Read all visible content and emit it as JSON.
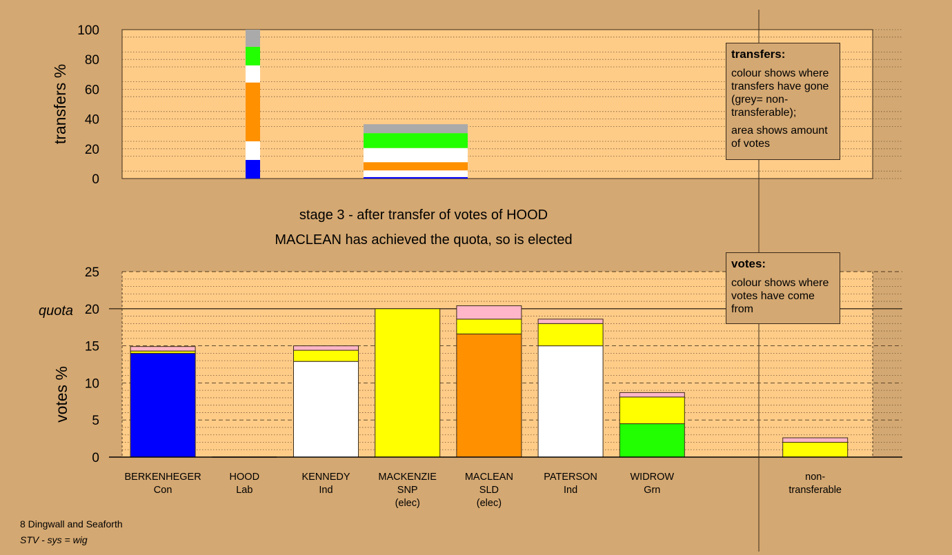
{
  "stage_title": "stage 3 - after transfer of votes of HOOD",
  "stage_subtitle": "MACLEAN has achieved the quota, so is elected",
  "transfers_legend": {
    "title": "transfers:",
    "p1": "colour shows where transfers have gone (grey= non-transferable);",
    "p2": "area shows amount of votes"
  },
  "votes_legend": {
    "title": "votes:",
    "p1": "colour shows where votes have come from"
  },
  "footer": {
    "line1": "8 Dingwall and Seaforth",
    "line2": "STV - sys = wig"
  },
  "colors": {
    "background": "#d4a872",
    "plot_bg": "#ffcc88",
    "Con": "#0000ff",
    "Lab": "#ffffff",
    "Ind": "#ffffff",
    "SNP": "#ffff00",
    "SLD": "#ff9000",
    "Grn": "#22ff00",
    "other": "#ffb6c8",
    "nontransferable": "#aaaaaa"
  },
  "chart_data": [
    {
      "type": "bar",
      "stacked": true,
      "ylabel": "transfers %",
      "ylim": [
        0,
        100
      ],
      "yticks": [
        0,
        20,
        40,
        60,
        80,
        100
      ],
      "grid": true,
      "bars": [
        {
          "position": 2,
          "width": 0.18,
          "segments": [
            {
              "color": "#0000ff",
              "value": 12.5
            },
            {
              "color": "#ffffff",
              "value": 12.5
            },
            {
              "color": "#ff9000",
              "value": 39.5
            },
            {
              "color": "#ffffff",
              "value": 11.5
            },
            {
              "color": "#22ff00",
              "value": 12.5
            },
            {
              "color": "#aaaaaa",
              "value": 11.5
            }
          ]
        },
        {
          "position": 4,
          "width": 1.28,
          "segments": [
            {
              "color": "#0000ff",
              "value": 1
            },
            {
              "color": "#ffffff",
              "value": 4.5
            },
            {
              "color": "#ff9000",
              "value": 5.5
            },
            {
              "color": "#ffffff",
              "value": 9.5
            },
            {
              "color": "#22ff00",
              "value": 10
            },
            {
              "color": "#aaaaaa",
              "value": 6
            }
          ]
        }
      ]
    },
    {
      "type": "bar",
      "stacked": true,
      "ylabel": "votes %",
      "ylim": [
        0,
        25
      ],
      "yticks": [
        0,
        5,
        10,
        15,
        20,
        25
      ],
      "quota": 20,
      "quota_label": "quota",
      "grid": true,
      "categories": [
        {
          "name": "BERKENHEGER",
          "party": "Con",
          "note": ""
        },
        {
          "name": "HOOD",
          "party": "Lab",
          "note": ""
        },
        {
          "name": "KENNEDY",
          "party": "Ind",
          "note": ""
        },
        {
          "name": "MACKENZIE",
          "party": "SNP",
          "note": "(elec)"
        },
        {
          "name": "MACLEAN",
          "party": "SLD",
          "note": "(elec)"
        },
        {
          "name": "PATERSON",
          "party": "Ind",
          "note": ""
        },
        {
          "name": "WIDROW",
          "party": "Grn",
          "note": ""
        },
        {
          "name": "",
          "party": "",
          "note": ""
        },
        {
          "name": "non-",
          "party": "transferable",
          "note": ""
        }
      ],
      "series_stacks": [
        [
          {
            "color": "#0000ff",
            "value": 14.0
          },
          {
            "color": "#ffff00",
            "value": 0.3
          },
          {
            "color": "#ffb6c8",
            "value": 0.6
          }
        ],
        [],
        [
          {
            "color": "#ffffff",
            "value": 12.9
          },
          {
            "color": "#ffff00",
            "value": 1.5
          },
          {
            "color": "#ffb6c8",
            "value": 0.6
          }
        ],
        [
          {
            "color": "#ffff00",
            "value": 20.0
          }
        ],
        [
          {
            "color": "#ff9000",
            "value": 16.6
          },
          {
            "color": "#ffff00",
            "value": 2.0
          },
          {
            "color": "#ffb6c8",
            "value": 1.8
          }
        ],
        [
          {
            "color": "#ffffff",
            "value": 15.0
          },
          {
            "color": "#ffff00",
            "value": 3.0
          },
          {
            "color": "#ffb6c8",
            "value": 0.6
          }
        ],
        [
          {
            "color": "#22ff00",
            "value": 4.5
          },
          {
            "color": "#ffff00",
            "value": 3.6
          },
          {
            "color": "#ffb6c8",
            "value": 0.6
          }
        ],
        [],
        [
          {
            "color": "#ffff00",
            "value": 2.0
          },
          {
            "color": "#ffb6c8",
            "value": 0.6
          }
        ]
      ]
    }
  ]
}
